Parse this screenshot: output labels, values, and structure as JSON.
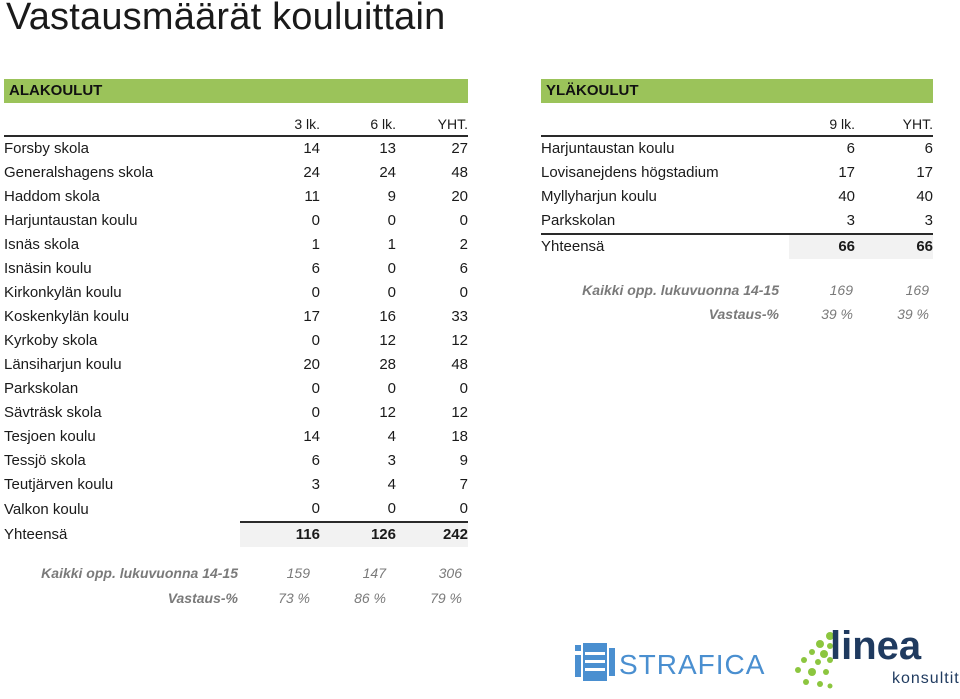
{
  "page_title": "Vastausmäärät kouluittain",
  "ala": {
    "header": "ALAKOULUT",
    "columns": [
      "3 lk.",
      "6 lk.",
      "YHT."
    ],
    "rows": [
      {
        "name": "Forsby skola",
        "c1": "14",
        "c2": "13",
        "t": "27"
      },
      {
        "name": "Generalshagens skola",
        "c1": "24",
        "c2": "24",
        "t": "48"
      },
      {
        "name": "Haddom skola",
        "c1": "11",
        "c2": "9",
        "t": "20"
      },
      {
        "name": "Harjuntaustan koulu",
        "c1": "0",
        "c2": "0",
        "t": "0"
      },
      {
        "name": "Isnäs skola",
        "c1": "1",
        "c2": "1",
        "t": "2"
      },
      {
        "name": "Isnäsin koulu",
        "c1": "6",
        "c2": "0",
        "t": "6"
      },
      {
        "name": "Kirkonkylän koulu",
        "c1": "0",
        "c2": "0",
        "t": "0"
      },
      {
        "name": "Koskenkylän koulu",
        "c1": "17",
        "c2": "16",
        "t": "33"
      },
      {
        "name": "Kyrkoby skola",
        "c1": "0",
        "c2": "12",
        "t": "12"
      },
      {
        "name": "Länsiharjun koulu",
        "c1": "20",
        "c2": "28",
        "t": "48"
      },
      {
        "name": "Parkskolan",
        "c1": "0",
        "c2": "0",
        "t": "0"
      },
      {
        "name": "Sävträsk skola",
        "c1": "0",
        "c2": "12",
        "t": "12"
      },
      {
        "name": "Tesjoen koulu",
        "c1": "14",
        "c2": "4",
        "t": "18"
      },
      {
        "name": "Tessjö skola",
        "c1": "6",
        "c2": "3",
        "t": "9"
      },
      {
        "name": "Teutjärven koulu",
        "c1": "3",
        "c2": "4",
        "t": "7"
      },
      {
        "name": "Valkon koulu",
        "c1": "0",
        "c2": "0",
        "t": "0"
      }
    ],
    "total": {
      "name": "Yhteensä",
      "c1": "116",
      "c2": "126",
      "t": "242"
    },
    "summary": {
      "label1": "Kaikki opp. lukuvuonna 14-15",
      "v1": [
        "159",
        "147",
        "306"
      ],
      "label2": "Vastaus-%",
      "v2": [
        "73 %",
        "86 %",
        "79 %"
      ]
    }
  },
  "yla": {
    "header": "YLÄKOULUT",
    "columns": [
      "9 lk.",
      "YHT."
    ],
    "rows": [
      {
        "name": "Harjuntaustan koulu",
        "c1": "6",
        "t": "6"
      },
      {
        "name": "Lovisanejdens högstadium",
        "c1": "17",
        "t": "17"
      },
      {
        "name": "Myllyharjun koulu",
        "c1": "40",
        "t": "40"
      },
      {
        "name": "Parkskolan",
        "c1": "3",
        "t": "3"
      }
    ],
    "total": {
      "name": "Yhteensä",
      "c1": "66",
      "t": "66"
    },
    "summary": {
      "label1": "Kaikki opp. lukuvuonna 14-15",
      "v1": [
        "169",
        "169"
      ],
      "label2": "Vastaus-%",
      "v2": [
        "39 %",
        "39 %"
      ]
    }
  },
  "logos": {
    "strafica": "STRAFICA",
    "linea": "linea",
    "linea_sub": "konsultit"
  },
  "colors": {
    "section_header": "#9bc35a",
    "strafica_blue": "#4a8fd0",
    "linea_green": "#8cc63f",
    "linea_text": "#1f3a5f"
  }
}
